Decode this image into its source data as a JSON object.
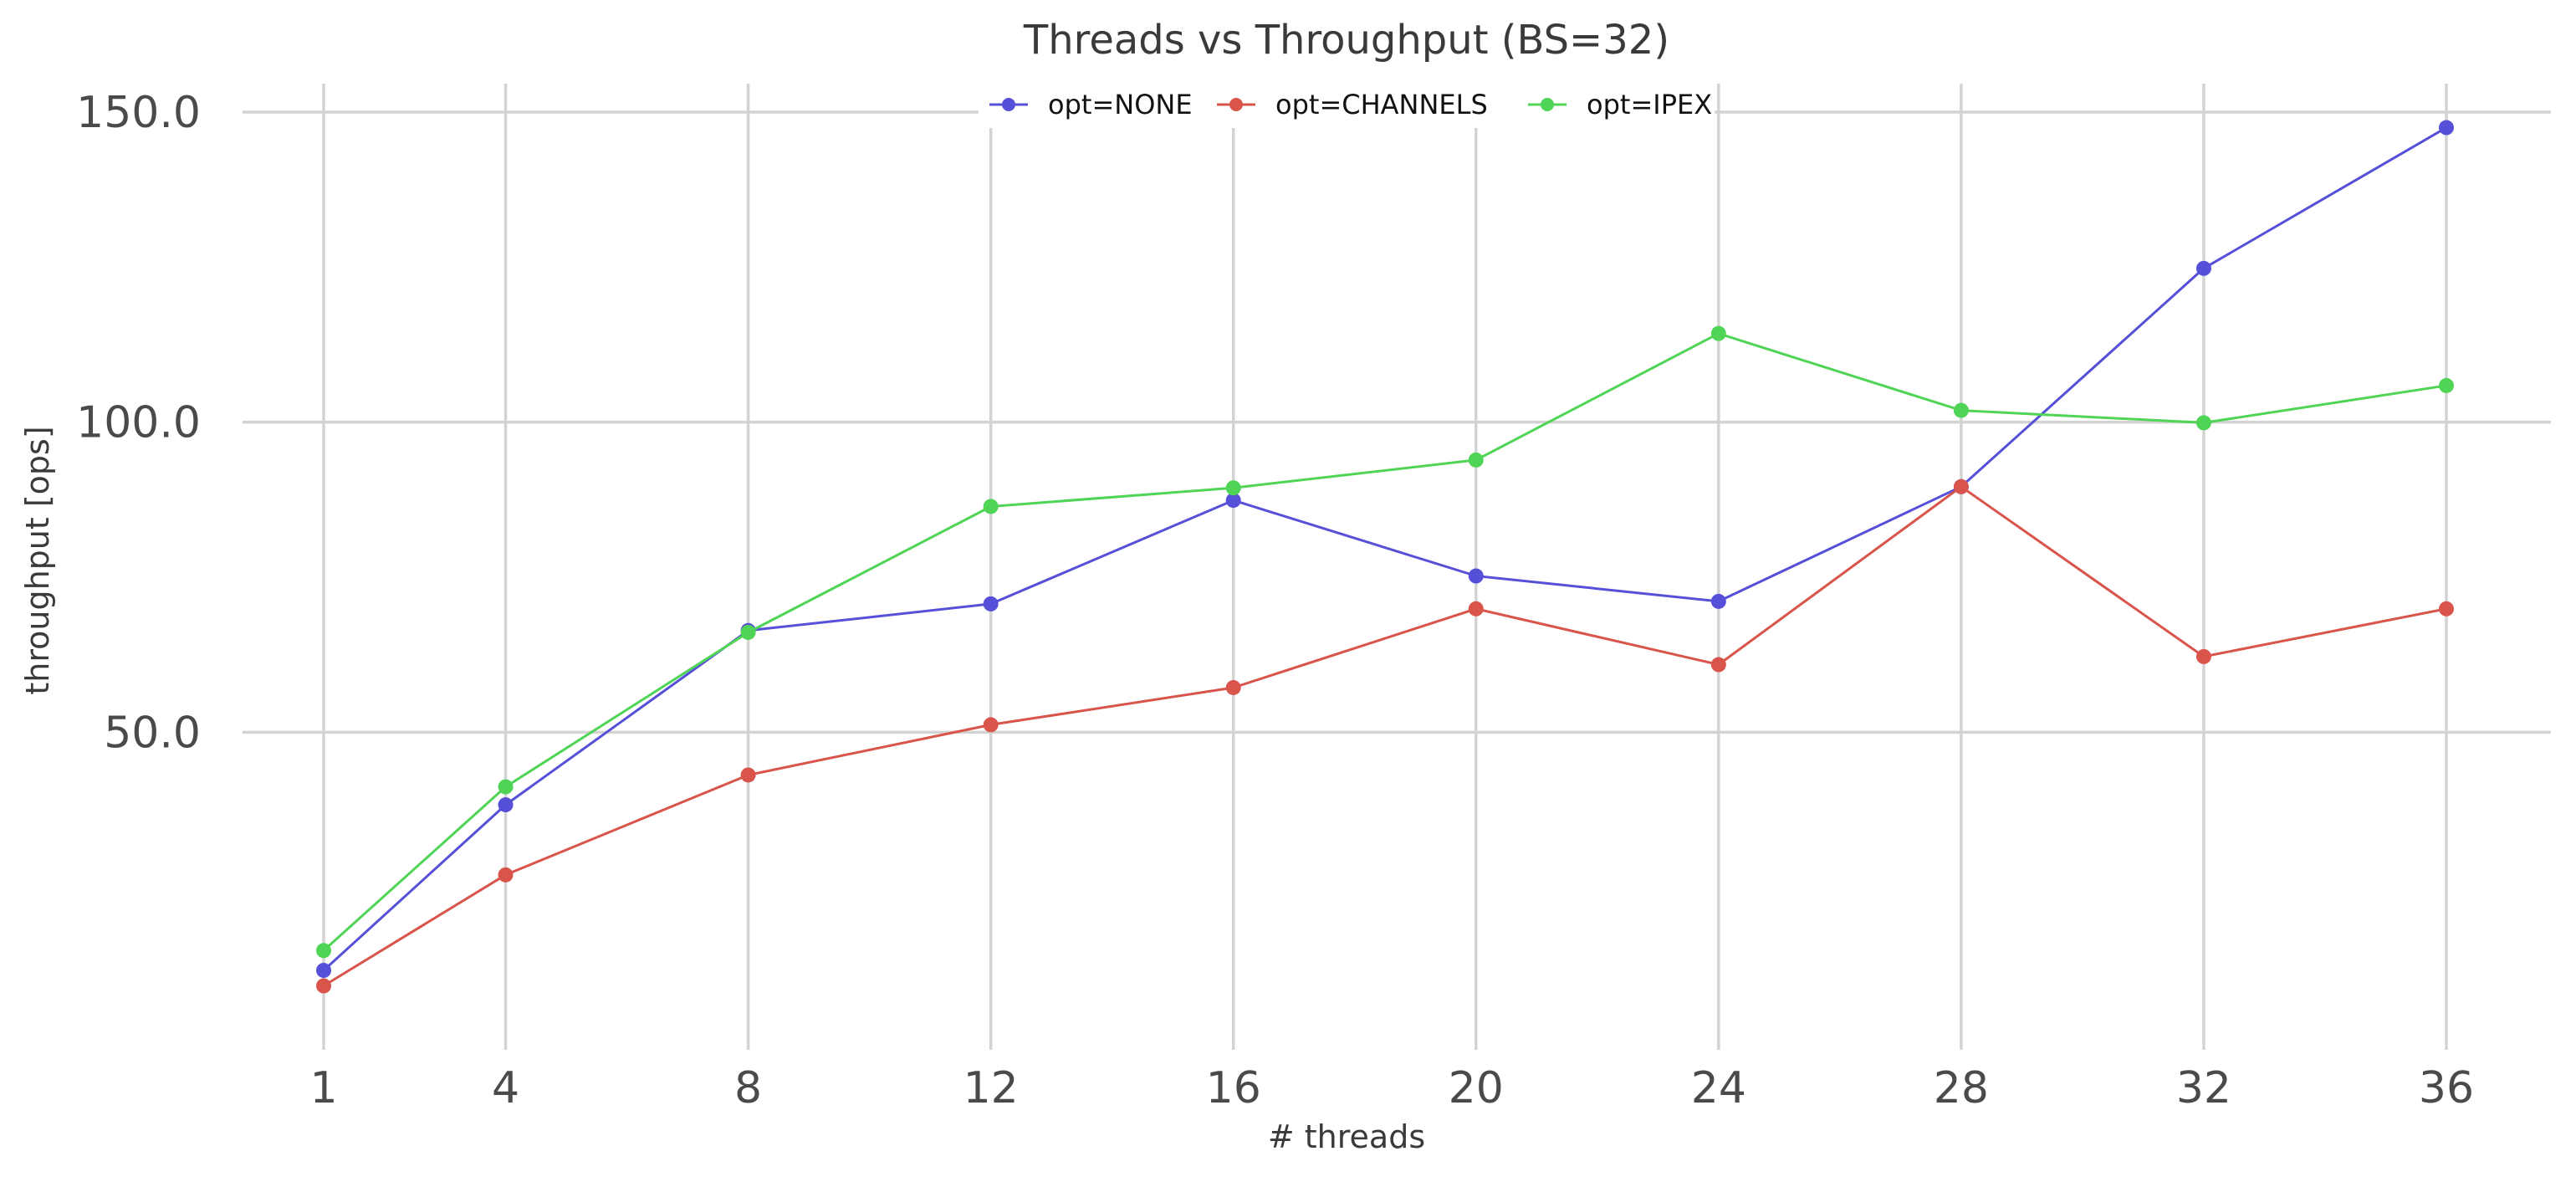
{
  "chart_data": {
    "type": "line",
    "title": "Threads vs Throughput (BS=32)",
    "xlabel": "# threads",
    "ylabel": "throughput [ops]",
    "x": [
      1,
      4,
      8,
      12,
      16,
      20,
      24,
      28,
      32,
      36
    ],
    "x_tick_labels": [
      "1",
      "4",
      "8",
      "12",
      "16",
      "20",
      "24",
      "28",
      "32",
      "36"
    ],
    "y_ticks": [
      50,
      100,
      150
    ],
    "y_tick_labels": [
      "50.0",
      "100.0",
      "150.0"
    ],
    "xlim": [
      0,
      37.7
    ],
    "ylim": [
      -0.5,
      155
    ],
    "grid": true,
    "legend_position": "top-center",
    "series": [
      {
        "name": "opt=NONE",
        "color": "#5650d8",
        "values": [
          11.6,
          38.3,
          66.4,
          70.7,
          87.4,
          75.2,
          71.1,
          89.6,
          124.8,
          147.5
        ]
      },
      {
        "name": "opt=CHANNELS",
        "color": "#d9544a",
        "values": [
          9.1,
          27.0,
          43.1,
          51.2,
          57.2,
          69.9,
          60.9,
          89.6,
          62.2,
          69.9
        ]
      },
      {
        "name": "opt=IPEX",
        "color": "#4fd456",
        "values": [
          14.8,
          41.2,
          66.1,
          86.4,
          89.4,
          93.9,
          114.3,
          101.9,
          99.9,
          105.9
        ]
      }
    ]
  }
}
